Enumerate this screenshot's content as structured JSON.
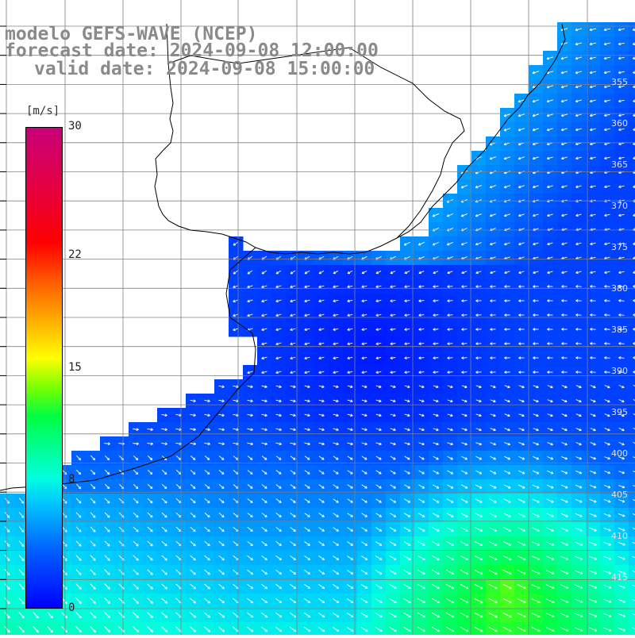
{
  "title": {
    "line1": "modelo GEFS-WAVE (NCEP)",
    "line2": "forecast date: 2024-09-08 12:00:00",
    "line3": "valid date: 2024-09-08 15:00:00"
  },
  "colorbar": {
    "unit": "[m/s]",
    "ticks": [
      "30",
      "22",
      "15",
      "8",
      "0"
    ],
    "tick_values": [
      30,
      22,
      15,
      8,
      0
    ]
  },
  "lat_labels": [
    "355",
    "360",
    "365",
    "370",
    "375",
    "380",
    "385",
    "390",
    "395",
    "400",
    "405",
    "410",
    "415"
  ],
  "colors": {
    "land": "#ffffff",
    "coast": "#000000",
    "grid": "#808080",
    "arrows": "#ffffff",
    "low_speed": "#0000ff",
    "high_speed": "#00ff80"
  }
}
